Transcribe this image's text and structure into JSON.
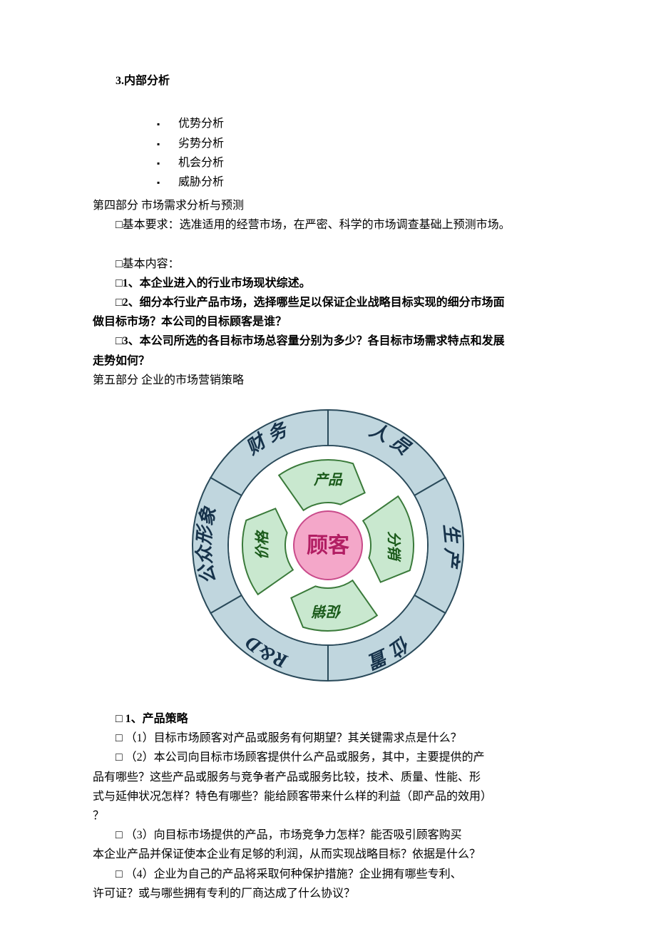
{
  "doc": {
    "s3_title": "3.内部分析",
    "bullets": [
      "优势分析",
      "劣势分析",
      "机会分析",
      "威胁分析"
    ],
    "s4_title": "第四部分  市场需求分析与预测",
    "s4_req": "基本要求：选准适用的经营市场，在严密、科学的市场调查基础上预测市场。",
    "s4_content_label": "基本内容：",
    "s4_p1": "1、本企业进入的行业市场现状综述。",
    "s4_p2a": "2、细分本行业产品市场，选择哪些足以保证企业战略目标实现的细分市场面",
    "s4_p2b": "做目标市场？本公司的目标顾客是谁？",
    "s4_p3a": "3、本公司所选的各目标市场总容量分别为多少？各目标市场需求特点和发展",
    "s4_p3b": "走势如何？",
    "s5_title": "第五部分  企业的市场营销策略",
    "s5_p1_title": " 1、产品策略",
    "s5_p1_1": " （1）目标市场顾客对产品或服务有何期望？其关键需求点是什么？",
    "s5_p1_2a": " （2）本公司向目标市场顾客提供什么产品或服务，其中，主要提供的产",
    "s5_p1_2b": "品有哪些？这些产品或服务与竞争者产品或服务比较，技术、质量、性能、形",
    "s5_p1_2c": "式与延伸状况怎样？特色有哪些？能给顾客带来什么样的利益（即产品的效用）",
    "s5_p1_2d": "？",
    "s5_p1_3a": "   （3）向目标市场提供的产品，市场竞争力怎样？能否吸引顾客购买",
    "s5_p1_3b": "本企业产品并保证使本企业有足够的利润，从而实现战略目标？依据是什么？",
    "s5_p1_4a": "   （4）企业为自己的产品将采取何种保护措施？企业拥有哪些专利、",
    "s5_p1_4b": "许可证？或与哪些拥有专利的厂商达成了什么协议？"
  },
  "diagram": {
    "size": 400,
    "center_label": "顾客",
    "center_fill": "#f4a7c9",
    "center_stroke": "#c94a8a",
    "center_text_color": "#b21e63",
    "inner_arrows": [
      "产品",
      "分销",
      "促销",
      "价格"
    ],
    "inner_arrow_fill": "#c9e8cf",
    "inner_arrow_stroke": "#3a7a3a",
    "inner_text_color": "#1a5a1a",
    "outer_ring_fill": "#c0d6de",
    "outer_ring_stroke": "#2a4a5a",
    "divider_stroke": "#2a4a5a",
    "outer_text_color": "#16324a",
    "outer_segments": [
      "财 务",
      "人 员",
      "生 产",
      "位 置",
      "R&D",
      "公众形象"
    ],
    "background": "#ffffff"
  }
}
